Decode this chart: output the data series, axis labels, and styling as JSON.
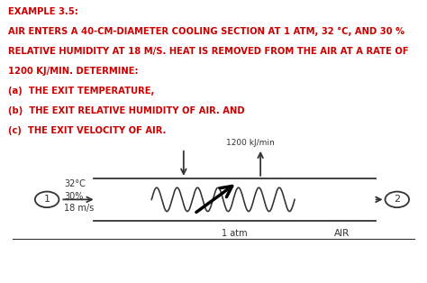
{
  "lines": [
    "EXAMPLE 3.5:",
    "AIR ENTERS A 40-CM-DIAMETER COOLING SECTION AT 1 ATM, 32 °C, AND 30 %",
    "RELATIVE HUMIDITY AT 18 M/S. HEAT IS REMOVED FROM THE AIR AT A RATE OF",
    "1200 KJ/MIN. DETERMINE:",
    "(a)  THE EXIT TEMPERATURE,",
    "(b)  THE EXIT RELATIVE HUMIDITY OF AIR. AND",
    "(c)  THE EXIT VELOCITY OF AIR."
  ],
  "text_color": "#cc0000",
  "line_color": "#333333",
  "label_inlet": "32°C\n30%\n18 m/s",
  "label_pressure": "1 atm",
  "label_outlet": "AIR",
  "label_heat": "1200 kJ/min",
  "node1": "1",
  "node2": "2",
  "font_size_title": 7.2,
  "font_size_diagram": 8.0
}
